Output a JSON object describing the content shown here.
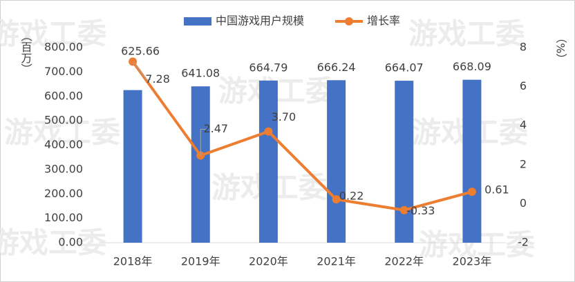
{
  "chart_data": {
    "type": "bar_line",
    "watermark": "游戏工委",
    "ylabel": "（百万）",
    "y2label": "（%）",
    "categories": [
      "2018年",
      "2019年",
      "2020年",
      "2021年",
      "2022年",
      "2023年"
    ],
    "series": [
      {
        "name": "中国游戏用户规模",
        "color": "#4472c4",
        "type": "bar",
        "values": [
          625.66,
          641.08,
          664.79,
          666.24,
          664.07,
          668.09
        ]
      },
      {
        "name": "增长率",
        "color": "#ed7d31",
        "type": "line",
        "axis": "y2",
        "values": [
          7.28,
          2.47,
          3.7,
          0.22,
          -0.33,
          0.61
        ],
        "value_labels": [
          "7.28",
          "2.47",
          "3.70",
          "0.22",
          "-0.33",
          "0.61"
        ]
      }
    ],
    "ylim": [
      0,
      800
    ],
    "yticks": [
      {
        "value": 0,
        "label": "0.00"
      },
      {
        "value": 100,
        "label": "100.00"
      },
      {
        "value": 200,
        "label": "200.00"
      },
      {
        "value": 300,
        "label": "300.00"
      },
      {
        "value": 400,
        "label": "400.00"
      },
      {
        "value": 500,
        "label": "500.00"
      },
      {
        "value": 600,
        "label": "600.00"
      },
      {
        "value": 700,
        "label": "700.00"
      },
      {
        "value": 800,
        "label": "800.00"
      }
    ],
    "y2lim": [
      -2,
      8
    ],
    "y2ticks": [
      -2,
      0,
      2,
      4,
      6,
      8
    ],
    "grid": false
  }
}
